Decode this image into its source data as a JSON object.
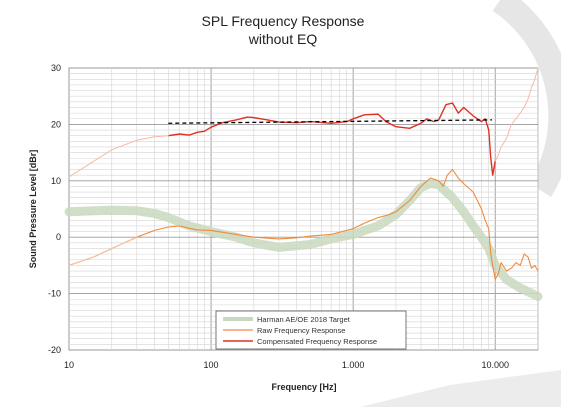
{
  "chart_data": {
    "type": "line",
    "title": "SPL Frequency Response",
    "subtitle": "without EQ",
    "xlabel": "Frequency [Hz]",
    "ylabel": "Sound Pressure Level [dBr]",
    "xscale": "log",
    "xlim": [
      10,
      20000
    ],
    "ylim": [
      -20,
      30
    ],
    "xticks": [
      10,
      100,
      1000,
      10000
    ],
    "xtick_labels": [
      "10",
      "100",
      "1.000",
      "10.000"
    ],
    "yticks": [
      -20,
      -10,
      0,
      10,
      20,
      30
    ],
    "ytick_labels": [
      "-20",
      "-10",
      "0",
      "10",
      "20",
      "30"
    ],
    "grid": true,
    "legend_position": "bottom-center",
    "series": [
      {
        "name": "Harman AE/OE 2018 Target",
        "color": "#c9d9c0",
        "x": [
          10,
          20,
          30,
          40,
          50,
          70,
          100,
          150,
          200,
          300,
          500,
          700,
          1000,
          1500,
          2000,
          2500,
          3000,
          3500,
          4000,
          5000,
          6000,
          7000,
          8000,
          9000,
          10000,
          12000,
          15000,
          20000
        ],
        "y": [
          4.5,
          4.8,
          4.7,
          4.2,
          3.5,
          2.0,
          1.0,
          0.0,
          -1.0,
          -1.8,
          -1.3,
          -0.3,
          0.5,
          2.0,
          4.0,
          6.5,
          8.8,
          9.5,
          9.3,
          7.0,
          4.5,
          2.0,
          0.0,
          -2.0,
          -5.0,
          -7.5,
          -9.0,
          -10.5
        ]
      },
      {
        "name": "Raw Frequency Response",
        "color": "#f08a3c",
        "x": [
          10,
          15,
          20,
          30,
          40,
          50,
          60,
          70,
          80,
          100,
          150,
          200,
          300,
          400,
          500,
          700,
          1000,
          1200,
          1500,
          1800,
          2000,
          2500,
          3000,
          3500,
          4000,
          4300,
          4600,
          5000,
          5500,
          6000,
          7000,
          8000,
          8500,
          9000,
          9300,
          9600,
          10000,
          10500,
          11000,
          12000,
          13000,
          14000,
          15000,
          16000,
          17000,
          18000,
          19000,
          20000
        ],
        "y": [
          -5,
          -3.5,
          -2.0,
          0.0,
          1.2,
          1.8,
          2.0,
          1.6,
          1.3,
          1.2,
          0.5,
          0.0,
          -0.3,
          -0.1,
          0.2,
          0.5,
          1.5,
          2.5,
          3.5,
          4.0,
          4.5,
          6.5,
          9.0,
          10.5,
          10.0,
          9.0,
          11.0,
          12.0,
          10.5,
          9.5,
          8.0,
          5.0,
          3.0,
          1.5,
          -3.0,
          -5.0,
          -7.5,
          -6.5,
          -4.5,
          -6.0,
          -5.5,
          -4.5,
          -5.0,
          -3.0,
          -3.5,
          -5.5,
          -5.0,
          -6.0
        ]
      },
      {
        "name": "Compensated Frequency Response",
        "color": "#e03024",
        "x": [
          50,
          60,
          70,
          80,
          90,
          100,
          120,
          150,
          180,
          200,
          250,
          300,
          400,
          500,
          700,
          900,
          1000,
          1200,
          1500,
          1700,
          2000,
          2500,
          3000,
          3300,
          3700,
          4000,
          4500,
          5000,
          5500,
          6000,
          7000,
          8000,
          8500,
          9000,
          9300,
          9600,
          10000
        ],
        "y": [
          18.0,
          18.3,
          18.1,
          18.6,
          18.8,
          19.5,
          20.3,
          20.8,
          21.3,
          21.2,
          20.8,
          20.4,
          20.3,
          20.5,
          20.2,
          20.5,
          21.0,
          21.7,
          21.8,
          20.5,
          19.6,
          19.3,
          20.2,
          21.0,
          20.5,
          20.8,
          23.5,
          23.8,
          22.0,
          23.0,
          21.5,
          20.5,
          21.0,
          19.0,
          14.0,
          11.0,
          13.5
        ]
      },
      {
        "color": "#f8b9a5",
        "x": [
          10,
          15,
          20,
          30,
          40,
          50
        ],
        "y": [
          10.7,
          13.5,
          15.5,
          17.2,
          17.8,
          18.0
        ]
      },
      {
        "color": "#f8b9a5",
        "x": [
          10000,
          10500,
          11000,
          12000,
          13000,
          14000,
          15000,
          16000,
          17000,
          18000,
          19000,
          20000
        ],
        "y": [
          13.5,
          14.5,
          16.0,
          17.5,
          20.0,
          21.0,
          22.0,
          23.0,
          24.5,
          26.5,
          28.0,
          30.0
        ]
      },
      {
        "color": "#f6c2a0",
        "x": [
          10,
          15,
          20,
          30
        ],
        "y": [
          -5.0,
          -3.5,
          -2.0,
          0.0
        ]
      }
    ],
    "target_line": {
      "x": [
        50,
        9500
      ],
      "y": [
        20.2,
        20.8
      ],
      "color": "#000000"
    }
  }
}
